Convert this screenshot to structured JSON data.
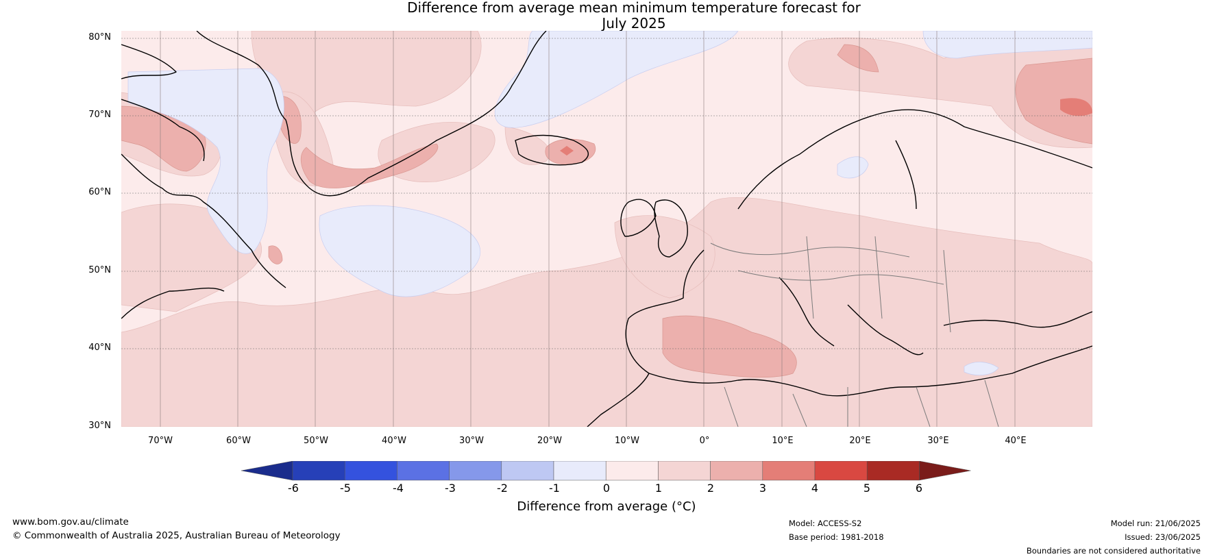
{
  "title": {
    "line1": "Difference from average mean minimum temperature forecast for",
    "line2": "July 2025"
  },
  "map": {
    "lat_labels": [
      "80°N",
      "70°N",
      "60°N",
      "50°N",
      "40°N",
      "30°N"
    ],
    "lon_labels": [
      "70°W",
      "60°W",
      "50°W",
      "40°W",
      "30°W",
      "20°W",
      "10°W",
      "0°",
      "10°E",
      "20°E",
      "30°E",
      "40°E"
    ],
    "lat_range": [
      30,
      81
    ],
    "lon_range": [
      -75,
      50
    ]
  },
  "legend": {
    "label": "Difference from average (°C)",
    "ticks": [
      "-6",
      "-5",
      "-4",
      "-3",
      "-2",
      "-1",
      "0",
      "1",
      "2",
      "3",
      "4",
      "5",
      "6"
    ],
    "colors": [
      "#1a2c8c",
      "#2640b8",
      "#3452de",
      "#5b71e4",
      "#8598ea",
      "#bec8f3",
      "#e8ebfb",
      "#fcebeb",
      "#f4d5d4",
      "#ecb0ad",
      "#e47e77",
      "#d94841",
      "#a92a24",
      "#7a1c1a"
    ]
  },
  "footer": {
    "url": "www.bom.gov.au/climate",
    "copyright": "© Commonwealth of Australia 2025, Australian Bureau of Meteorology",
    "model": "Model: ACCESS-S2",
    "base_period": "Base period: 1981-2018",
    "model_run": "Model run: 21/06/2025",
    "issued": "Issued: 23/06/2025",
    "disclaimer": "Boundaries are not considered authoritative"
  }
}
